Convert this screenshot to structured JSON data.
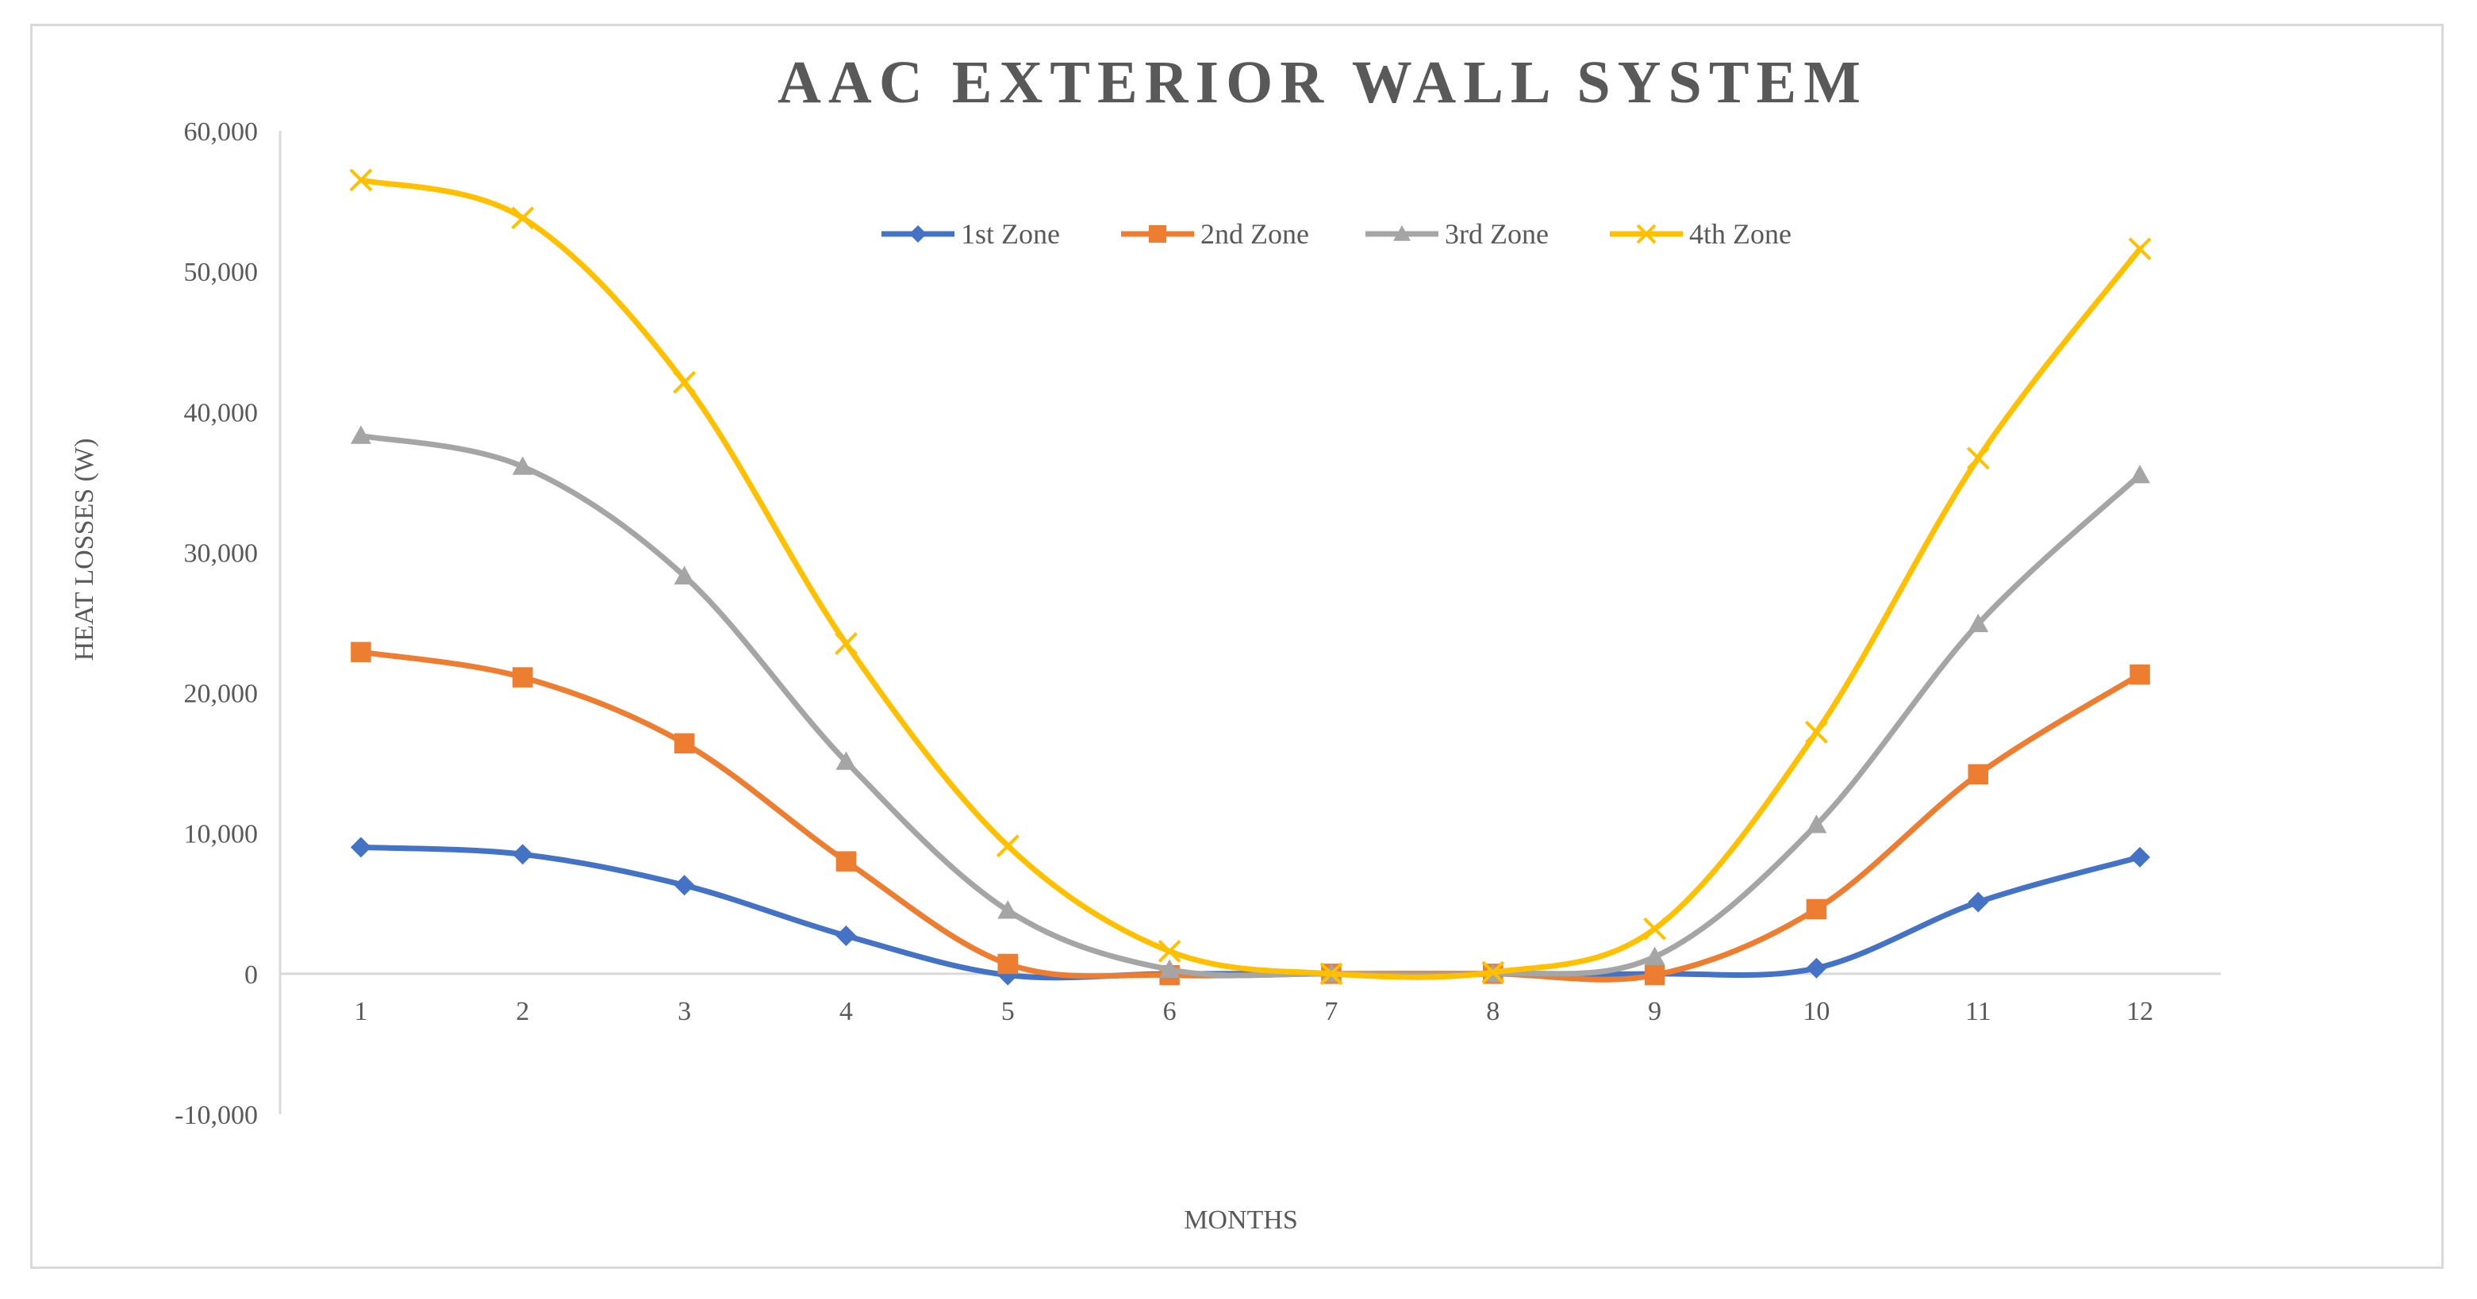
{
  "chart_data": {
    "type": "line",
    "title": "AAC EXTERIOR WALL SYSTEM",
    "xlabel": "MONTHS",
    "ylabel": "HEAT LOSSES (W)",
    "categories": [
      "1",
      "2",
      "3",
      "4",
      "5",
      "6",
      "7",
      "8",
      "9",
      "10",
      "11",
      "12"
    ],
    "ylim": [
      -10000,
      60000
    ],
    "yticks": [
      60000,
      50000,
      40000,
      30000,
      20000,
      10000,
      0,
      -10000
    ],
    "ytick_labels": [
      "60,000",
      "50,000",
      "40,000",
      "30,000",
      "20,000",
      "10,000",
      "0",
      "-10,000"
    ],
    "grid": false,
    "legend_position": "top-center",
    "series": [
      {
        "name": "1st Zone",
        "color": "#4472c4",
        "marker": "diamond",
        "values": [
          9000,
          8500,
          6300,
          2700,
          -100,
          0,
          0,
          0,
          0,
          400,
          5100,
          8300
        ]
      },
      {
        "name": "2nd Zone",
        "color": "#ed7d31",
        "marker": "square",
        "values": [
          22900,
          21100,
          16400,
          8000,
          700,
          -100,
          0,
          0,
          -100,
          4600,
          14200,
          21300
        ]
      },
      {
        "name": "3rd Zone",
        "color": "#a5a5a5",
        "marker": "triangle",
        "values": [
          38300,
          36100,
          28300,
          15100,
          4500,
          300,
          0,
          0,
          1200,
          10600,
          24900,
          35500
        ]
      },
      {
        "name": "4th Zone",
        "color": "#ffc000",
        "marker": "cross",
        "values": [
          56500,
          53800,
          42100,
          23500,
          9100,
          1600,
          0,
          100,
          3200,
          17200,
          36700,
          51600
        ]
      }
    ]
  }
}
